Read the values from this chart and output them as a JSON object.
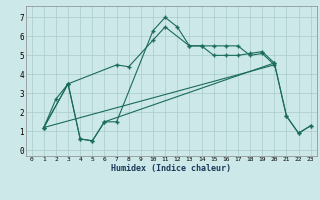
{
  "xlabel": "Humidex (Indice chaleur)",
  "background_color": "#cde8e8",
  "grid_color": "#aacccc",
  "line_color": "#1a6b5a",
  "xlim": [
    -0.5,
    23.5
  ],
  "ylim": [
    -0.3,
    7.6
  ],
  "xticks": [
    0,
    1,
    2,
    3,
    4,
    5,
    6,
    7,
    8,
    9,
    10,
    11,
    12,
    13,
    14,
    15,
    16,
    17,
    18,
    19,
    20,
    21,
    22,
    23
  ],
  "yticks": [
    0,
    1,
    2,
    3,
    4,
    5,
    6,
    7
  ],
  "line1_x": [
    1,
    2,
    3,
    4,
    5,
    6,
    7,
    10,
    11,
    12,
    13,
    14,
    15,
    16,
    17,
    18,
    19,
    20,
    21,
    22,
    23
  ],
  "line1_y": [
    1.2,
    2.7,
    3.5,
    0.6,
    0.5,
    1.5,
    1.5,
    6.3,
    7.0,
    6.5,
    5.5,
    5.5,
    5.0,
    5.0,
    5.0,
    5.1,
    5.2,
    4.6,
    1.8,
    0.9,
    1.3
  ],
  "line2_x": [
    1,
    3,
    7,
    8,
    10,
    11,
    13,
    14,
    15,
    16,
    17,
    18,
    19,
    20
  ],
  "line2_y": [
    1.2,
    3.5,
    4.5,
    4.4,
    5.8,
    6.5,
    5.5,
    5.5,
    5.5,
    5.5,
    5.5,
    5.0,
    5.1,
    4.5
  ],
  "line3_x": [
    1,
    3,
    4,
    5,
    6,
    20,
    21,
    22,
    23
  ],
  "line3_y": [
    1.2,
    3.5,
    0.6,
    0.5,
    1.5,
    4.6,
    1.8,
    0.9,
    1.3
  ],
  "line4_x": [
    1,
    20
  ],
  "line4_y": [
    1.2,
    4.5
  ]
}
